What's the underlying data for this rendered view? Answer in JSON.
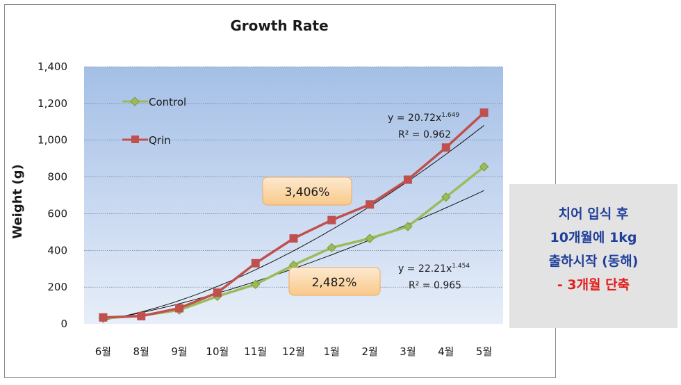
{
  "chart_data": {
    "type": "line",
    "title": "Growth Rate",
    "ylabel": "Weight (g)",
    "xlabel": "",
    "ylim": [
      0,
      1400
    ],
    "yticks": [
      "0",
      "200",
      "400",
      "600",
      "800",
      "1,000",
      "1,200",
      "1,400"
    ],
    "ytick_values": [
      0,
      200,
      400,
      600,
      800,
      1000,
      1200,
      1400
    ],
    "categories": [
      "6월",
      "8월",
      "9월",
      "10월",
      "11월",
      "12월",
      "1월",
      "2월",
      "3월",
      "4월",
      "5월"
    ],
    "grid": "horizontal",
    "legend_position": "top-left",
    "series": [
      {
        "name": "Control",
        "color": "#9bbb59",
        "marker": "diamond",
        "values": [
          30,
          45,
          75,
          150,
          215,
          320,
          415,
          465,
          530,
          690,
          855
        ]
      },
      {
        "name": "Qrin",
        "color": "#c0504d",
        "marker": "square",
        "values": [
          35,
          42,
          85,
          170,
          330,
          465,
          565,
          650,
          785,
          960,
          1150
        ]
      }
    ],
    "trendlines": [
      {
        "series": "Qrin",
        "equation": "y = 20.72x",
        "exponent": "1.649",
        "coef": 20.72,
        "power": 1.649,
        "r2": "R² = 0.962"
      },
      {
        "series": "Control",
        "equation": "y = 22.21x",
        "exponent": "1.454",
        "coef": 22.21,
        "power": 1.454,
        "r2": "R² = 0.965"
      }
    ],
    "annotations": [
      {
        "text": "3,406%",
        "series": "Qrin"
      },
      {
        "text": "2,482%",
        "series": "Control"
      }
    ]
  },
  "side_note": {
    "line1": "치어 입식 후",
    "line2": "10개월에 1kg",
    "line3": "출하시작 (동해)",
    "line4": "- 3개월 단축"
  }
}
